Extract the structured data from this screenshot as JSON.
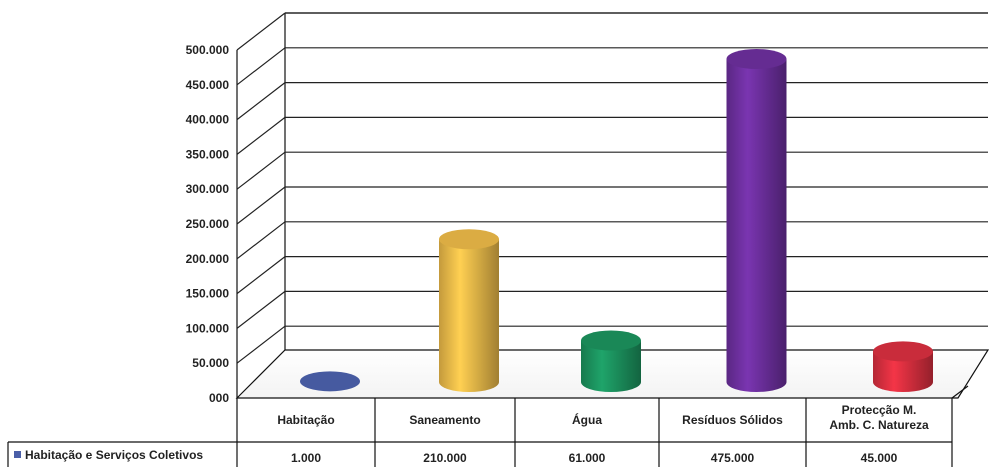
{
  "chart_data": {
    "type": "bar",
    "style": "3d-cylinder",
    "categories": [
      "Habitação",
      "Saneamento",
      "Água",
      "Resíduos Sólidos",
      "Protecção M. Amb. C. Natureza"
    ],
    "category_lines": [
      [
        "Habitação"
      ],
      [
        "Saneamento"
      ],
      [
        "Água"
      ],
      [
        "Resíduos Sólidos"
      ],
      [
        "Protecção M.",
        "Amb. C. Natureza"
      ]
    ],
    "series": [
      {
        "name": "Habitação e Serviços Coletivos",
        "values": [
          1000,
          210000,
          61000,
          475000,
          45000
        ],
        "value_labels": [
          "1.000",
          "210.000",
          "61.000",
          "475.000",
          "45.000"
        ]
      }
    ],
    "bar_colors": [
      "#4a5fa8",
      "#e6b547",
      "#1b8f5c",
      "#6a2e9a",
      "#d42e3e"
    ],
    "legend_marker_color": "#4a5fa8",
    "ylim": [
      0,
      500000
    ],
    "y_ticks": [
      0,
      50000,
      100000,
      150000,
      200000,
      250000,
      300000,
      350000,
      400000,
      450000,
      500000
    ],
    "y_tick_labels": [
      "000",
      "50.000",
      "100.000",
      "150.000",
      "200.000",
      "250.000",
      "300.000",
      "350.000",
      "400.000",
      "450.000",
      "500.000"
    ],
    "grid": true,
    "data_table": true,
    "title": "",
    "xlabel": "",
    "ylabel": ""
  }
}
